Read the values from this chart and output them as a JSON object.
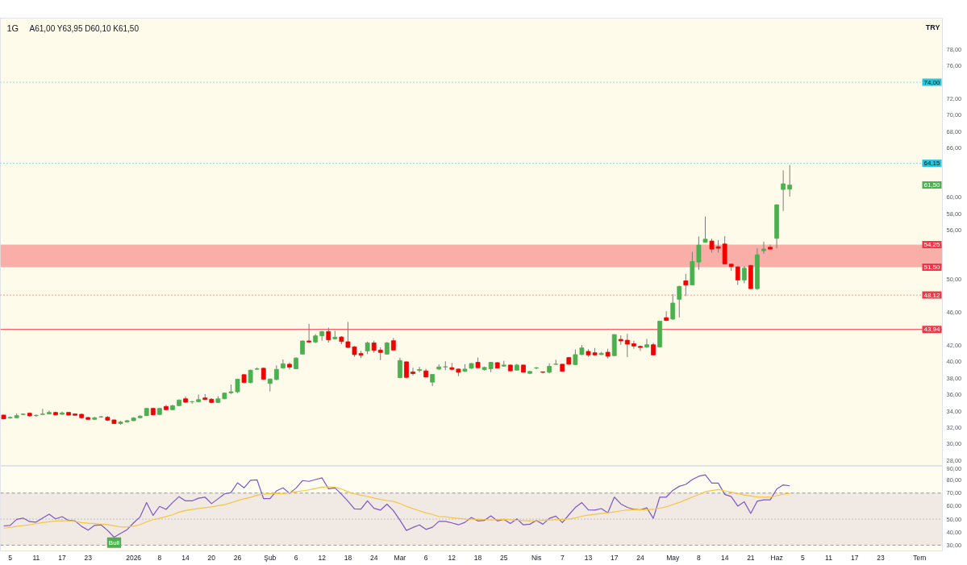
{
  "chart_data": [
    {
      "type": "candlestick",
      "title": "1G",
      "subtitle": "A61,00 Y63,95 D60,10 K61,50",
      "ylabel": "TRY",
      "tick_labels": "y",
      "categories": [
        null,
        null,
        null,
        null,
        null,
        null,
        null,
        null,
        null,
        null,
        null,
        null,
        null,
        null,
        null,
        null,
        null,
        null,
        null,
        null,
        null,
        null,
        null,
        null,
        null,
        null,
        null,
        null,
        null,
        null,
        null,
        null,
        null,
        null,
        null,
        null,
        null,
        null,
        null,
        null,
        null,
        null,
        null,
        null,
        null,
        null,
        null,
        null,
        null,
        null,
        null,
        null,
        null,
        null,
        null,
        null,
        null,
        null,
        null,
        null,
        null,
        null,
        null,
        null,
        null,
        null,
        null,
        null,
        null,
        null,
        null,
        null,
        null,
        null,
        null,
        null,
        null,
        null,
        null,
        null,
        null,
        null,
        null,
        null,
        null,
        null,
        null,
        null,
        null,
        null,
        null,
        null,
        null,
        null,
        null,
        null,
        null,
        null,
        null,
        null,
        null,
        null,
        null,
        null,
        null,
        null,
        null,
        null,
        null,
        null,
        null,
        null,
        null,
        null,
        null,
        null,
        null,
        null,
        null,
        null,
        null,
        null,
        null,
        null,
        null,
        null,
        null,
        null,
        null,
        null,
        null,
        null,
        null,
        null,
        null,
        null,
        null,
        null,
        null,
        null,
        null,
        null,
        null,
        null,
        null
      ],
      "ohlc": [
        [
          33.53,
          33.55,
          33.0,
          33.07
        ],
        [
          33.18,
          33.35,
          33.1,
          33.25
        ],
        [
          33.2,
          33.72,
          33.15,
          33.46
        ],
        [
          33.6,
          33.72,
          33.5,
          33.65
        ],
        [
          33.75,
          33.85,
          33.33,
          33.43
        ],
        [
          33.45,
          33.6,
          33.3,
          33.5
        ],
        [
          33.6,
          34.28,
          33.55,
          33.65
        ],
        [
          33.66,
          34.05,
          33.6,
          33.85
        ],
        [
          33.85,
          33.95,
          33.5,
          33.56
        ],
        [
          33.62,
          33.95,
          33.55,
          33.79
        ],
        [
          33.85,
          33.92,
          33.45,
          33.53
        ],
        [
          33.66,
          33.72,
          33.45,
          33.5
        ],
        [
          33.62,
          33.72,
          33.1,
          33.2
        ],
        [
          33.23,
          33.3,
          32.95,
          33.0
        ],
        [
          33.0,
          33.3,
          32.95,
          33.2
        ],
        [
          33.3,
          33.42,
          33.2,
          33.32
        ],
        [
          33.26,
          33.4,
          32.8,
          32.9
        ],
        [
          32.94,
          32.97,
          32.45,
          32.49
        ],
        [
          32.49,
          32.81,
          32.36,
          32.68
        ],
        [
          32.68,
          32.94,
          32.6,
          32.85
        ],
        [
          32.84,
          33.27,
          32.8,
          33.17
        ],
        [
          33.2,
          33.5,
          33.15,
          33.4
        ],
        [
          33.46,
          34.4,
          33.4,
          34.34
        ],
        [
          34.34,
          34.4,
          33.5,
          33.56
        ],
        [
          33.59,
          34.4,
          33.55,
          34.34
        ],
        [
          34.57,
          34.77,
          34.1,
          34.18
        ],
        [
          34.18,
          34.77,
          34.1,
          34.67
        ],
        [
          34.67,
          35.45,
          34.6,
          35.35
        ],
        [
          35.51,
          35.8,
          35.0,
          35.09
        ],
        [
          35.15,
          35.25,
          34.9,
          35.15
        ],
        [
          35.15,
          36.03,
          35.1,
          35.41
        ],
        [
          35.61,
          36.07,
          35.35,
          35.41
        ],
        [
          35.45,
          35.58,
          34.95,
          35.06
        ],
        [
          35.06,
          35.83,
          35.0,
          35.51
        ],
        [
          35.51,
          36.25,
          35.45,
          36.2
        ],
        [
          36.23,
          37.24,
          36.1,
          36.36
        ],
        [
          36.36,
          37.95,
          36.2,
          37.89
        ],
        [
          38.44,
          38.5,
          37.4,
          37.5
        ],
        [
          37.47,
          39.05,
          37.4,
          38.99
        ],
        [
          39.1,
          39.32,
          39.0,
          39.15
        ],
        [
          39.22,
          39.3,
          37.8,
          37.89
        ],
        [
          37.37,
          37.95,
          36.39,
          37.92
        ],
        [
          37.85,
          39.58,
          37.76,
          39.09
        ],
        [
          39.25,
          40.29,
          39.15,
          39.77
        ],
        [
          39.71,
          39.94,
          39.06,
          39.35
        ],
        [
          39.16,
          40.55,
          39.1,
          40.46
        ],
        [
          40.94,
          42.6,
          40.9,
          42.54
        ],
        [
          42.54,
          44.62,
          42.31,
          42.41
        ],
        [
          42.41,
          43.38,
          42.28,
          43.16
        ],
        [
          43.16,
          43.77,
          42.57,
          43.68
        ],
        [
          43.68,
          44.16,
          42.34,
          42.67
        ],
        [
          42.8,
          43.77,
          42.73,
          42.99
        ],
        [
          43.02,
          43.12,
          42.15,
          42.47
        ],
        [
          42.44,
          44.85,
          41.66,
          41.76
        ],
        [
          41.82,
          41.92,
          40.62,
          40.88
        ],
        [
          41.01,
          41.33,
          40.46,
          40.81
        ],
        [
          41.33,
          42.47,
          40.94,
          42.31
        ],
        [
          42.31,
          42.57,
          41.11,
          41.4
        ],
        [
          41.43,
          41.76,
          40.2,
          41.14
        ],
        [
          40.94,
          42.4,
          40.9,
          42.31
        ],
        [
          42.57,
          42.9,
          41.4,
          41.43
        ],
        [
          38.08,
          40.52,
          38.0,
          40.16
        ],
        [
          40.0,
          40.05,
          37.98,
          38.11
        ],
        [
          38.77,
          39.29,
          38.34,
          38.57
        ],
        [
          38.96,
          39.38,
          38.73,
          39.06
        ],
        [
          38.9,
          39.16,
          38.1,
          38.15
        ],
        [
          37.53,
          38.5,
          37.04,
          38.47
        ],
        [
          39.12,
          39.71,
          39.0,
          39.38
        ],
        [
          39.38,
          40.07,
          38.99,
          39.4
        ],
        [
          39.29,
          39.87,
          38.96,
          39.09
        ],
        [
          39.12,
          39.2,
          38.25,
          38.73
        ],
        [
          38.86,
          39.71,
          38.75,
          39.12
        ],
        [
          39.22,
          39.85,
          39.15,
          39.8
        ],
        [
          39.94,
          40.52,
          39.2,
          39.29
        ],
        [
          39.06,
          39.42,
          38.93,
          39.32
        ],
        [
          39.16,
          40.0,
          38.73,
          39.94
        ],
        [
          39.9,
          39.95,
          39.2,
          39.25
        ],
        [
          39.48,
          40.13,
          39.4,
          39.61
        ],
        [
          39.61,
          39.65,
          38.85,
          38.9
        ],
        [
          38.99,
          39.74,
          38.93,
          39.61
        ],
        [
          39.61,
          39.65,
          38.7,
          38.73
        ],
        [
          38.6,
          38.9,
          38.5,
          38.83
        ],
        [
          39.25,
          39.38,
          39.1,
          39.27
        ],
        [
          38.78,
          38.8,
          38.6,
          38.72
        ],
        [
          38.73,
          39.8,
          38.6,
          39.45
        ],
        [
          39.7,
          40.26,
          39.65,
          39.72
        ],
        [
          39.71,
          39.75,
          38.8,
          38.86
        ],
        [
          40.52,
          40.6,
          39.65,
          39.71
        ],
        [
          39.67,
          41.5,
          39.6,
          40.88
        ],
        [
          40.88,
          42.05,
          40.85,
          41.69
        ],
        [
          41.27,
          41.53,
          40.62,
          40.84
        ],
        [
          41.1,
          41.69,
          40.75,
          40.84
        ],
        [
          40.88,
          41.2,
          40.85,
          41.04
        ],
        [
          41.17,
          41.59,
          40.42,
          40.68
        ],
        [
          40.75,
          43.35,
          40.7,
          43.32
        ],
        [
          42.73,
          43.22,
          42.08,
          42.54
        ],
        [
          42.63,
          43.41,
          40.58,
          42.15
        ],
        [
          42.21,
          42.57,
          41.59,
          41.92
        ],
        [
          41.88,
          41.98,
          41.33,
          41.75
        ],
        [
          41.79,
          42.8,
          41.7,
          42.08
        ],
        [
          42.08,
          42.31,
          40.8,
          40.84
        ],
        [
          41.82,
          45.0,
          41.75,
          44.94
        ],
        [
          45.37,
          46.15,
          44.94,
          45.04
        ],
        [
          45.2,
          48.23,
          45.1,
          47.15
        ],
        [
          47.61,
          49.25,
          45.4,
          49.17
        ],
        [
          49.85,
          50.7,
          48.0,
          49.33
        ],
        [
          49.35,
          53.38,
          49.3,
          52.2
        ],
        [
          52.14,
          55.25,
          51.19,
          54.2
        ],
        [
          54.53,
          57.66,
          54.5,
          54.92
        ],
        [
          54.69,
          54.98,
          53.28,
          53.71
        ],
        [
          54.0,
          54.79,
          53.28,
          53.81
        ],
        [
          54.33,
          55.28,
          51.85,
          51.91
        ],
        [
          51.88,
          51.95,
          51.06,
          51.58
        ],
        [
          51.55,
          51.6,
          49.36,
          49.95
        ],
        [
          49.95,
          51.65,
          49.56,
          51.39
        ],
        [
          51.72,
          51.78,
          48.85,
          48.9
        ],
        [
          48.9,
          53.81,
          48.74,
          53.02
        ],
        [
          53.51,
          54.62,
          53.15,
          53.71
        ],
        [
          53.94,
          54.26,
          53.6,
          53.71
        ],
        [
          55.02,
          59.15,
          53.81,
          59.1
        ],
        [
          60.96,
          63.28,
          58.35,
          61.65
        ],
        [
          61.0,
          63.95,
          60.1,
          61.5
        ],
        null,
        null,
        null,
        null,
        null,
        null,
        null,
        null,
        null,
        null,
        null,
        null,
        null,
        null,
        null,
        null,
        null,
        null,
        null,
        null,
        null,
        null,
        null
      ],
      "colors": [
        "#f20000",
        "#4caf50",
        "#4caf50",
        "#4caf50",
        "#f20000",
        "#4caf50",
        "#4caf50",
        "#4caf50",
        "#f20000",
        "#4caf50",
        "#f20000",
        "#f20000",
        "#f20000",
        "#f20000",
        "#4caf50",
        "#4caf50",
        "#f20000",
        "#f20000",
        "#4caf50",
        "#4caf50",
        "#4caf50",
        "#4caf50",
        "#4caf50",
        "#f20000",
        "#4caf50",
        "#f20000",
        "#4caf50",
        "#4caf50",
        "#f20000",
        "#4caf50",
        "#4caf50",
        "#f20000",
        "#f20000",
        "#4caf50",
        "#4caf50",
        "#4caf50",
        "#4caf50",
        "#f20000",
        "#4caf50",
        "#4caf50",
        "#f20000",
        "#4caf50",
        "#4caf50",
        "#4caf50",
        "#f20000",
        "#4caf50",
        "#4caf50",
        "#f20000",
        "#4caf50",
        "#4caf50",
        "#f20000",
        "#4caf50",
        "#f20000",
        "#f20000",
        "#f20000",
        "#f20000",
        "#4caf50",
        "#f20000",
        "#f20000",
        "#4caf50",
        "#f20000",
        "#4caf50",
        "#f20000",
        "#f20000",
        "#4caf50",
        "#f20000",
        "#4caf50",
        "#4caf50",
        "#4caf50",
        "#f20000",
        "#f20000",
        "#4caf50",
        "#4caf50",
        "#f20000",
        "#4caf50",
        "#4caf50",
        "#f20000",
        "#4caf50",
        "#f20000",
        "#4caf50",
        "#f20000",
        "#4caf50",
        "#4caf50",
        "#f20000",
        "#4caf50",
        "#4caf50",
        "#f20000",
        "#f20000",
        "#4caf50",
        "#4caf50",
        "#f20000",
        "#f20000",
        "#4caf50",
        "#f20000",
        "#4caf50",
        "#f20000",
        "#f20000",
        "#f20000",
        "#f20000",
        "#4caf50",
        "#f20000",
        "#4caf50",
        "#f20000",
        "#4caf50",
        "#4caf50",
        "#f20000",
        "#4caf50",
        "#4caf50",
        "#4caf50",
        "#f20000",
        "#f20000",
        "#f20000",
        "#f20000",
        "#f20000",
        "#4caf50",
        "#f20000",
        "#4caf50",
        "#4caf50",
        "#f20000",
        "#4caf50",
        "#4caf50",
        "#4caf50",
        null,
        null,
        null,
        null,
        null,
        null,
        null,
        null,
        null,
        null,
        null,
        null,
        null,
        null,
        null,
        null,
        null,
        null,
        null,
        null,
        null,
        null,
        null
      ],
      "ylim": [
        27.3,
        81.8
      ],
      "yticks": [
        {
          "value": 28,
          "label": "28,00"
        },
        {
          "value": 30,
          "label": "30,00"
        },
        {
          "value": 32,
          "label": "32,00"
        },
        {
          "value": 34,
          "label": "34,00"
        },
        {
          "value": 36,
          "label": "36,00"
        },
        {
          "value": 38,
          "label": "38,00"
        },
        {
          "value": 40,
          "label": "40,00"
        },
        {
          "value": 42,
          "label": "42,00"
        },
        {
          "value": 46,
          "label": "46,00"
        },
        {
          "value": 50,
          "label": "50,00"
        },
        {
          "value": 56,
          "label": "56,00"
        },
        {
          "value": 58,
          "label": "58,00"
        },
        {
          "value": 60,
          "label": "60,00"
        },
        {
          "value": 66,
          "label": "66,00"
        },
        {
          "value": 68,
          "label": "68,00"
        },
        {
          "value": 70,
          "label": "70,00"
        },
        {
          "value": 72,
          "label": "72,00"
        },
        {
          "value": 76,
          "label": "76,00"
        },
        {
          "value": 78,
          "label": "78,00"
        }
      ],
      "ref_lines": [
        {
          "axis": "y",
          "value": 74.0,
          "label": "74,00",
          "color": "#26c6da",
          "line_style": "dotted"
        },
        {
          "axis": "y",
          "value": 64.15,
          "label": "64,15",
          "color": "#26c6da",
          "line_style": "dotted"
        },
        {
          "axis": "y",
          "value": 48.12,
          "label": "48,12",
          "color": "#f23645",
          "line_style": "dotted"
        },
        {
          "axis": "y",
          "value": 43.94,
          "label": "43,94",
          "color": "#f23645",
          "line_style": "solid"
        }
      ],
      "bands": [
        {
          "axis": "y",
          "from": 51.5,
          "to": 54.25,
          "color": "#f9aea8"
        }
      ],
      "annotations": [
        {
          "text": "61,50",
          "y": 61.5
        },
        {
          "text": "54,25",
          "y": 54.25
        },
        {
          "text": "51,50",
          "y": 51.5
        }
      ]
    },
    {
      "type": "line",
      "categories": [
        null,
        "5",
        null,
        null,
        null,
        "11",
        null,
        null,
        null,
        "17",
        null,
        null,
        null,
        "23",
        null,
        null,
        null,
        null,
        null,
        null,
        "2026",
        null,
        null,
        null,
        "8",
        null,
        null,
        null,
        "14",
        null,
        null,
        null,
        "20",
        null,
        null,
        null,
        "26",
        null,
        null,
        null,
        null,
        "Şub",
        null,
        null,
        null,
        "6",
        null,
        null,
        null,
        "12",
        null,
        null,
        null,
        "18",
        null,
        null,
        null,
        "24",
        null,
        null,
        null,
        "Mar",
        null,
        null,
        null,
        "6",
        null,
        null,
        null,
        "12",
        null,
        null,
        null,
        "18",
        null,
        null,
        null,
        "25",
        null,
        null,
        null,
        null,
        "Nis",
        null,
        null,
        null,
        "7",
        null,
        null,
        null,
        "13",
        null,
        null,
        null,
        "17",
        null,
        null,
        null,
        "24",
        null,
        null,
        null,
        null,
        "May",
        null,
        null,
        null,
        "8",
        null,
        null,
        null,
        "14",
        null,
        null,
        null,
        "21",
        null,
        null,
        null,
        "Haz",
        null,
        null,
        null,
        "5",
        null,
        null,
        null,
        "11",
        null,
        null,
        null,
        "17",
        null,
        null,
        null,
        "23",
        null,
        null,
        null,
        null,
        null,
        "Tem",
        null,
        null,
        null
      ],
      "series": [
        {
          "color": "#7e57c2",
          "values": [
            44.8,
            45.2,
            49.8,
            50.8,
            48.1,
            47.7,
            50.8,
            53.8,
            50.2,
            51.9,
            49.0,
            48.6,
            44.4,
            41.5,
            45.2,
            45.6,
            41.3,
            36.1,
            39.0,
            41.9,
            47.1,
            51.7,
            62.7,
            52.9,
            59.8,
            57.5,
            62.7,
            67.3,
            64.0,
            64.0,
            66.1,
            66.9,
            61.9,
            65.6,
            69.4,
            70.4,
            77.9,
            74.0,
            79.8,
            80.2,
            65.8,
            65.8,
            71.7,
            74.0,
            69.8,
            73.8,
            79.6,
            79.0,
            80.4,
            81.7,
            73.3,
            74.0,
            69.2,
            63.8,
            57.9,
            57.7,
            64.0,
            58.3,
            56.9,
            61.5,
            56.5,
            49.2,
            41.3,
            43.6,
            45.6,
            42.1,
            43.8,
            48.3,
            48.3,
            47.1,
            45.6,
            47.5,
            51.3,
            48.6,
            49.0,
            52.5,
            48.6,
            49.8,
            46.7,
            50.2,
            45.6,
            46.1,
            49.0,
            46.1,
            50.6,
            52.3,
            47.3,
            53.3,
            59.0,
            62.7,
            57.1,
            56.9,
            58.1,
            54.8,
            66.9,
            61.7,
            59.0,
            57.5,
            57.1,
            58.6,
            50.6,
            66.9,
            66.9,
            72.1,
            75.2,
            76.7,
            80.4,
            82.9,
            84.0,
            77.7,
            77.7,
            69.0,
            67.3,
            60.0,
            63.3,
            54.4,
            63.8,
            64.8,
            64.8,
            73.1,
            76.3,
            75.6,
            null,
            null,
            null,
            null,
            null,
            null,
            null,
            null,
            null,
            null,
            null,
            null,
            null,
            null,
            null,
            null,
            null,
            null,
            null,
            null,
            null,
            null,
            null
          ]
        },
        {
          "color": "#f5c542",
          "values": [
            43.1,
            43.7,
            44.4,
            45.1,
            45.7,
            46.5,
            47.3,
            48.0,
            48.6,
            48.7,
            48.8,
            48.2,
            47.4,
            46.9,
            46.6,
            46.2,
            45.8,
            44.9,
            44.0,
            44.0,
            44.6,
            45.7,
            47.9,
            49.6,
            50.6,
            52.0,
            53.3,
            55.4,
            56.6,
            57.4,
            58.2,
            58.8,
            59.4,
            60.3,
            61.1,
            62.6,
            64.2,
            65.6,
            66.7,
            68.4,
            69.2,
            69.6,
            69.6,
            69.6,
            70.2,
            71.0,
            71.7,
            72.5,
            73.5,
            74.6,
            74.8,
            74.6,
            73.1,
            71.0,
            69.4,
            68.4,
            67.4,
            66.2,
            65.1,
            64.3,
            63.6,
            62.0,
            59.8,
            58.0,
            56.4,
            54.8,
            53.6,
            52.0,
            51.8,
            51.0,
            50.6,
            50.1,
            49.9,
            49.8,
            49.6,
            49.4,
            49.6,
            49.8,
            49.5,
            49.2,
            48.9,
            48.6,
            48.8,
            49.0,
            49.3,
            49.5,
            49.8,
            50.1,
            50.9,
            52.2,
            53.1,
            53.7,
            54.3,
            54.9,
            55.6,
            56.4,
            57.0,
            57.3,
            57.3,
            57.3,
            57.5,
            58.4,
            59.4,
            61.2,
            62.8,
            64.8,
            66.9,
            68.9,
            71.0,
            72.0,
            72.7,
            71.7,
            70.7,
            69.6,
            68.5,
            67.8,
            67.0,
            66.9,
            66.9,
            68.0,
            69.1,
            69.8,
            null,
            null,
            null,
            null,
            null,
            null,
            null,
            null,
            null,
            null,
            null,
            null,
            null,
            null,
            null,
            null,
            null,
            null,
            null,
            null,
            null,
            null,
            null
          ]
        }
      ],
      "ylim": [
        25.6,
        90.6
      ],
      "yticks": [
        {
          "value": 30,
          "label": "30,00"
        },
        {
          "value": 40,
          "label": "40,00"
        },
        {
          "value": 50,
          "label": "50,00"
        },
        {
          "value": 60,
          "label": "60,00"
        },
        {
          "value": 70,
          "label": "70,00"
        },
        {
          "value": 80,
          "label": "80,00"
        },
        {
          "value": 90,
          "label": "90,00"
        }
      ],
      "ref_lines": [
        {
          "axis": "y",
          "value": 70,
          "color": "#9598a1",
          "line_style": "dashed"
        },
        {
          "axis": "y",
          "value": 50,
          "color": "#9598a1",
          "line_style": "dotted"
        },
        {
          "axis": "y",
          "value": 30,
          "color": "#9598a1",
          "line_style": "dashed"
        }
      ],
      "bands": [
        {
          "axis": "y",
          "from": 30,
          "to": 70,
          "color": "#f1e9e4"
        }
      ],
      "annotations": [
        {
          "text": "Bull",
          "y": 31.9
        }
      ]
    }
  ]
}
